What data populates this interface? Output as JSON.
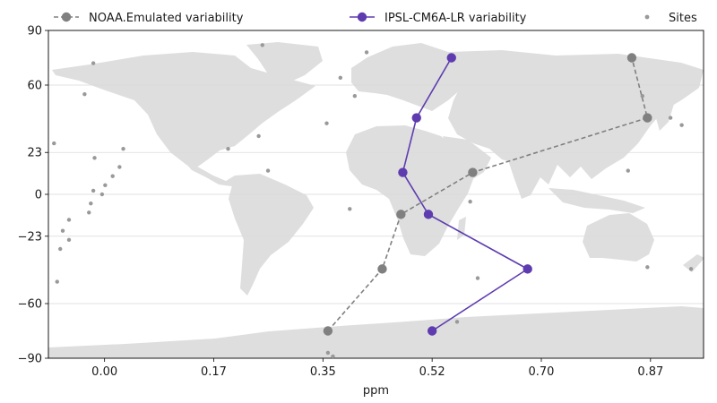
{
  "chart_data": {
    "type": "line",
    "title": "",
    "xlabel": "ppm",
    "ylabel": "",
    "xlim": [
      -0.09,
      0.96
    ],
    "ylim": [
      -90,
      90
    ],
    "x_tick_values": [
      0.0,
      0.175,
      0.35,
      0.525,
      0.7,
      0.875
    ],
    "x_tick_labels": [
      "0.00",
      "0.17",
      "0.35",
      "0.52",
      "0.70",
      "0.87"
    ],
    "y_tick_values": [
      90,
      60,
      23,
      0,
      -23,
      -60,
      -90
    ],
    "y_tick_labels": [
      "90",
      "60",
      "23",
      "0",
      "−23",
      "−60",
      "−90"
    ],
    "grid": "horizontal",
    "legend_position": "top",
    "background": "world map (land in light grey)",
    "series": [
      {
        "name": "NOAA.Emulated variability",
        "color": "#808080",
        "line_style": "dashed",
        "x": [
          0.358,
          0.445,
          0.475,
          0.59,
          0.87,
          0.845
        ],
        "y": [
          -75,
          -41,
          -11,
          12,
          42,
          75
        ]
      },
      {
        "name": "IPSL-CM6A-LR variability",
        "color": "#5e3caf",
        "line_style": "solid",
        "x": [
          0.525,
          0.678,
          0.519,
          0.478,
          0.5,
          0.556
        ],
        "y": [
          -75,
          -41,
          -11,
          12,
          42,
          75
        ]
      },
      {
        "name": "Sites",
        "color": "#999999",
        "type": "scatter",
        "x": [
          -0.081,
          -0.071,
          -0.057,
          -0.067,
          -0.057,
          -0.076,
          -0.032,
          -0.025,
          -0.022,
          -0.018,
          -0.016,
          -0.018,
          -0.004,
          0.001,
          0.013,
          0.024,
          0.03,
          0.253,
          0.198,
          0.247,
          0.262,
          0.356,
          0.378,
          0.401,
          0.42,
          0.393,
          0.586,
          0.598,
          0.565,
          0.839,
          0.862,
          0.87,
          0.907,
          0.925,
          0.94,
          0.358,
          0.366
        ],
        "y": [
          28,
          -30,
          -25,
          -20,
          -14,
          -48,
          55,
          -10,
          -5,
          2,
          20,
          72,
          0,
          5,
          10,
          15,
          25,
          82,
          25,
          32,
          13,
          39,
          64,
          54,
          78,
          -8,
          -4,
          -46,
          -70,
          13,
          54,
          -40,
          42,
          38,
          -41,
          -87,
          -89
        ]
      }
    ]
  }
}
